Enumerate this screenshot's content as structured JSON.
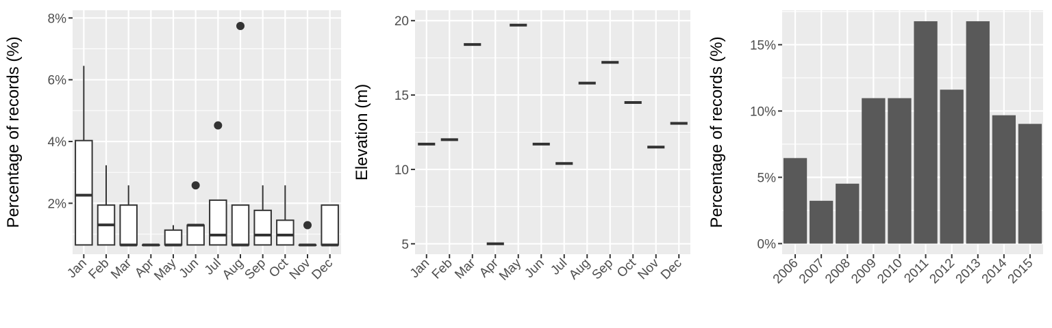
{
  "chart_data": [
    {
      "type": "box",
      "ylabel": "Percentage of records (%)",
      "xlabel": "",
      "categories": [
        "Jan",
        "Feb",
        "Mar",
        "Apr",
        "May",
        "Jun",
        "Jul",
        "Aug",
        "Sep",
        "Oct",
        "Nov",
        "Dec"
      ],
      "y_ticks": [
        "2%",
        "4%",
        "6%",
        "8%"
      ],
      "y_tick_values": [
        2,
        4,
        6,
        8
      ],
      "ylim": [
        0.35,
        8.25
      ],
      "grid": true,
      "boxes": [
        {
          "min": 0.65,
          "q1": 0.65,
          "median": 2.26,
          "q3": 4.03,
          "max": 6.45,
          "outliers": []
        },
        {
          "min": 0.65,
          "q1": 0.65,
          "median": 1.3,
          "q3": 1.94,
          "max": 3.23,
          "outliers": []
        },
        {
          "min": 0.65,
          "q1": 0.65,
          "median": 0.65,
          "q3": 1.94,
          "max": 2.58,
          "outliers": []
        },
        {
          "min": 0.65,
          "q1": 0.65,
          "median": 0.65,
          "q3": 0.65,
          "max": 0.65,
          "outliers": []
        },
        {
          "min": 0.65,
          "q1": 0.65,
          "median": 0.65,
          "q3": 1.13,
          "max": 1.29,
          "outliers": []
        },
        {
          "min": 0.65,
          "q1": 0.65,
          "median": 1.29,
          "q3": 1.29,
          "max": 1.29,
          "outliers": [
            2.58
          ]
        },
        {
          "min": 0.65,
          "q1": 0.65,
          "median": 0.97,
          "q3": 2.1,
          "max": 2.1,
          "outliers": [
            4.52
          ]
        },
        {
          "min": 0.65,
          "q1": 0.65,
          "median": 0.65,
          "q3": 1.94,
          "max": 1.94,
          "outliers": [
            7.74
          ]
        },
        {
          "min": 0.65,
          "q1": 0.65,
          "median": 0.97,
          "q3": 1.77,
          "max": 2.58,
          "outliers": []
        },
        {
          "min": 0.65,
          "q1": 0.65,
          "median": 0.97,
          "q3": 1.45,
          "max": 2.58,
          "outliers": []
        },
        {
          "min": 0.65,
          "q1": 0.65,
          "median": 0.65,
          "q3": 0.65,
          "max": 0.65,
          "outliers": [
            1.29
          ]
        },
        {
          "min": 0.65,
          "q1": 0.65,
          "median": 0.65,
          "q3": 1.94,
          "max": 1.94,
          "outliers": []
        }
      ]
    },
    {
      "type": "box",
      "ylabel": "Elevation (m)",
      "xlabel": "",
      "categories": [
        "Jan",
        "Feb",
        "Mar",
        "Apr",
        "May",
        "Jun",
        "Jul",
        "Aug",
        "Sep",
        "Oct",
        "Nov",
        "Dec"
      ],
      "y_ticks": [
        "5",
        "10",
        "15",
        "20"
      ],
      "y_tick_values": [
        5,
        10,
        15,
        20
      ],
      "ylim": [
        4.3,
        20.7
      ],
      "grid": true,
      "values": [
        11.7,
        12.0,
        18.4,
        5.0,
        19.7,
        11.7,
        10.4,
        15.8,
        17.2,
        14.5,
        11.5,
        13.1
      ]
    },
    {
      "type": "bar",
      "ylabel": "Percentage of records (%)",
      "xlabel": "",
      "categories": [
        "2006",
        "2007",
        "2008",
        "2009",
        "2010",
        "2011",
        "2012",
        "2013",
        "2014",
        "2015"
      ],
      "values": [
        6.45,
        3.23,
        4.52,
        10.97,
        10.97,
        16.77,
        11.61,
        16.77,
        9.68,
        9.03
      ],
      "y_ticks": [
        "0%",
        "5%",
        "10%",
        "15%"
      ],
      "y_tick_values": [
        0,
        5,
        10,
        15
      ],
      "ylim": [
        -0.8,
        17.6
      ],
      "grid": true,
      "bar_color": "#595959"
    }
  ]
}
